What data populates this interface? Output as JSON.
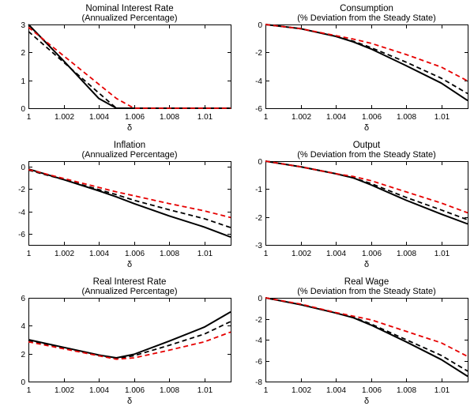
{
  "figure": {
    "background": "#ffffff",
    "axis_color": "#000000"
  },
  "chart_data": [
    {
      "type": "line",
      "title": "Nominal Interest Rate",
      "subtitle": "(Annualized Percentage)",
      "xlabel": "δ",
      "xlim": [
        1,
        1.0115
      ],
      "ylim": [
        0,
        3
      ],
      "xticks": [
        1,
        1.002,
        1.004,
        1.006,
        1.008,
        1.01
      ],
      "xtick_labels": [
        "1",
        "1.002",
        "1.004",
        "1.006",
        "1.008",
        "1.01"
      ],
      "yticks": [
        0,
        1,
        2,
        3
      ],
      "x": [
        1,
        1.002,
        1.004,
        1.005,
        1.006,
        1.008,
        1.01,
        1.0115
      ],
      "series": [
        {
          "name": "baseline-solid-black",
          "color": "#000000",
          "dash": "",
          "width": 2,
          "values": [
            3.0,
            1.7,
            0.35,
            0.0,
            0.0,
            0.0,
            0.0,
            0.0
          ]
        },
        {
          "name": "alt-dashed-black",
          "color": "#000000",
          "dash": "6,4",
          "width": 1.8,
          "values": [
            2.75,
            1.65,
            0.55,
            0.0,
            0.0,
            0.0,
            0.0,
            0.0
          ]
        },
        {
          "name": "alt-dashed-red",
          "color": "#e60000",
          "dash": "6,4",
          "width": 1.8,
          "values": [
            2.9,
            1.88,
            0.86,
            0.35,
            0.0,
            0.0,
            0.0,
            0.0
          ]
        }
      ]
    },
    {
      "type": "line",
      "title": "Consumption",
      "subtitle": "(% Deviation from the Steady State)",
      "xlabel": "δ",
      "xlim": [
        1,
        1.0115
      ],
      "ylim": [
        -6,
        0
      ],
      "xticks": [
        1,
        1.002,
        1.004,
        1.006,
        1.008,
        1.01
      ],
      "xtick_labels": [
        "1",
        "1.002",
        "1.004",
        "1.006",
        "1.008",
        "1.01"
      ],
      "yticks": [
        -6,
        -4,
        -2,
        0
      ],
      "x": [
        1,
        1.002,
        1.004,
        1.005,
        1.006,
        1.008,
        1.01,
        1.0115
      ],
      "series": [
        {
          "name": "baseline-solid-black",
          "color": "#000000",
          "dash": "",
          "width": 2,
          "values": [
            0,
            -0.3,
            -0.85,
            -1.25,
            -1.75,
            -2.95,
            -4.2,
            -5.45
          ]
        },
        {
          "name": "alt-dashed-black",
          "color": "#000000",
          "dash": "6,4",
          "width": 1.8,
          "values": [
            0,
            -0.3,
            -0.85,
            -1.2,
            -1.65,
            -2.7,
            -3.85,
            -4.95
          ]
        },
        {
          "name": "alt-dashed-red",
          "color": "#e60000",
          "dash": "6,4",
          "width": 1.8,
          "values": [
            0,
            -0.3,
            -0.8,
            -1.05,
            -1.35,
            -2.15,
            -3.05,
            -4.05
          ]
        }
      ]
    },
    {
      "type": "line",
      "title": "Inflation",
      "subtitle": "(Annualized Percentage)",
      "xlabel": "δ",
      "xlim": [
        1,
        1.0115
      ],
      "ylim": [
        -7,
        0.5
      ],
      "xticks": [
        1,
        1.002,
        1.004,
        1.006,
        1.008,
        1.01
      ],
      "xtick_labels": [
        "1",
        "1.002",
        "1.004",
        "1.006",
        "1.008",
        "1.01"
      ],
      "yticks": [
        -6,
        -4,
        -2,
        0
      ],
      "x": [
        1,
        1.002,
        1.004,
        1.005,
        1.006,
        1.008,
        1.01,
        1.0115
      ],
      "series": [
        {
          "name": "baseline-solid-black",
          "color": "#000000",
          "dash": "",
          "width": 2,
          "values": [
            -0.2,
            -1.15,
            -2.15,
            -2.7,
            -3.3,
            -4.4,
            -5.4,
            -6.3
          ]
        },
        {
          "name": "alt-dashed-black",
          "color": "#000000",
          "dash": "6,4",
          "width": 1.8,
          "values": [
            -0.3,
            -1.15,
            -2.05,
            -2.5,
            -3.0,
            -3.85,
            -4.65,
            -5.45
          ]
        },
        {
          "name": "alt-dashed-red",
          "color": "#e60000",
          "dash": "6,4",
          "width": 1.8,
          "values": [
            -0.25,
            -1.05,
            -1.85,
            -2.25,
            -2.6,
            -3.3,
            -3.95,
            -4.55
          ]
        }
      ]
    },
    {
      "type": "line",
      "title": "Output",
      "subtitle": "(% Deviation from the Steady State)",
      "xlabel": "δ",
      "xlim": [
        1,
        1.0115
      ],
      "ylim": [
        -3,
        0
      ],
      "xticks": [
        1,
        1.002,
        1.004,
        1.006,
        1.008,
        1.01
      ],
      "xtick_labels": [
        "1",
        "1.002",
        "1.004",
        "1.006",
        "1.008",
        "1.01"
      ],
      "yticks": [
        -3,
        -2,
        -1,
        0
      ],
      "x": [
        1,
        1.002,
        1.004,
        1.005,
        1.006,
        1.008,
        1.01,
        1.0115
      ],
      "series": [
        {
          "name": "baseline-solid-black",
          "color": "#000000",
          "dash": "",
          "width": 2,
          "values": [
            0,
            -0.2,
            -0.45,
            -0.6,
            -0.85,
            -1.4,
            -1.9,
            -2.25
          ]
        },
        {
          "name": "alt-dashed-black",
          "color": "#000000",
          "dash": "6,4",
          "width": 1.8,
          "values": [
            0,
            -0.2,
            -0.45,
            -0.6,
            -0.8,
            -1.3,
            -1.75,
            -2.1
          ]
        },
        {
          "name": "alt-dashed-red",
          "color": "#e60000",
          "dash": "6,4",
          "width": 1.8,
          "values": [
            0,
            -0.2,
            -0.45,
            -0.55,
            -0.7,
            -1.1,
            -1.5,
            -1.85
          ]
        }
      ]
    },
    {
      "type": "line",
      "title": "Real Interest Rate",
      "subtitle": "(Annualized Percentage)",
      "xlabel": "δ",
      "xlim": [
        1,
        1.0115
      ],
      "ylim": [
        0,
        6
      ],
      "xticks": [
        1,
        1.002,
        1.004,
        1.006,
        1.008,
        1.01
      ],
      "xtick_labels": [
        "1",
        "1.002",
        "1.004",
        "1.006",
        "1.008",
        "1.01"
      ],
      "yticks": [
        0,
        2,
        4,
        6
      ],
      "x": [
        1,
        1.002,
        1.004,
        1.005,
        1.006,
        1.008,
        1.01,
        1.0115
      ],
      "series": [
        {
          "name": "baseline-solid-black",
          "color": "#000000",
          "dash": "",
          "width": 2,
          "values": [
            3.0,
            2.45,
            1.9,
            1.7,
            1.95,
            2.9,
            3.9,
            5.0
          ]
        },
        {
          "name": "alt-dashed-black",
          "color": "#000000",
          "dash": "6,4",
          "width": 1.8,
          "values": [
            2.95,
            2.4,
            1.85,
            1.65,
            1.85,
            2.6,
            3.4,
            4.3
          ]
        },
        {
          "name": "alt-dashed-red",
          "color": "#e60000",
          "dash": "6,4",
          "width": 1.8,
          "values": [
            2.85,
            2.35,
            1.85,
            1.6,
            1.7,
            2.25,
            2.85,
            3.55
          ]
        }
      ]
    },
    {
      "type": "line",
      "title": "Real Wage",
      "subtitle": "(% Deviation from the Steady State)",
      "xlabel": "δ",
      "xlim": [
        1,
        1.0115
      ],
      "ylim": [
        -8,
        0
      ],
      "xticks": [
        1,
        1.002,
        1.004,
        1.006,
        1.008,
        1.01
      ],
      "xtick_labels": [
        "1",
        "1.002",
        "1.004",
        "1.006",
        "1.008",
        "1.01"
      ],
      "yticks": [
        -8,
        -6,
        -4,
        -2,
        0
      ],
      "x": [
        1,
        1.002,
        1.004,
        1.005,
        1.006,
        1.008,
        1.01,
        1.0115
      ],
      "series": [
        {
          "name": "baseline-solid-black",
          "color": "#000000",
          "dash": "",
          "width": 2,
          "values": [
            0,
            -0.65,
            -1.45,
            -1.9,
            -2.6,
            -4.2,
            -5.9,
            -7.5
          ]
        },
        {
          "name": "alt-dashed-black",
          "color": "#000000",
          "dash": "6,4",
          "width": 1.8,
          "values": [
            0,
            -0.65,
            -1.45,
            -1.85,
            -2.5,
            -4.0,
            -5.5,
            -7.0
          ]
        },
        {
          "name": "alt-dashed-red",
          "color": "#e60000",
          "dash": "6,4",
          "width": 1.8,
          "values": [
            0,
            -0.6,
            -1.4,
            -1.75,
            -2.1,
            -3.2,
            -4.3,
            -5.6
          ]
        }
      ]
    }
  ]
}
